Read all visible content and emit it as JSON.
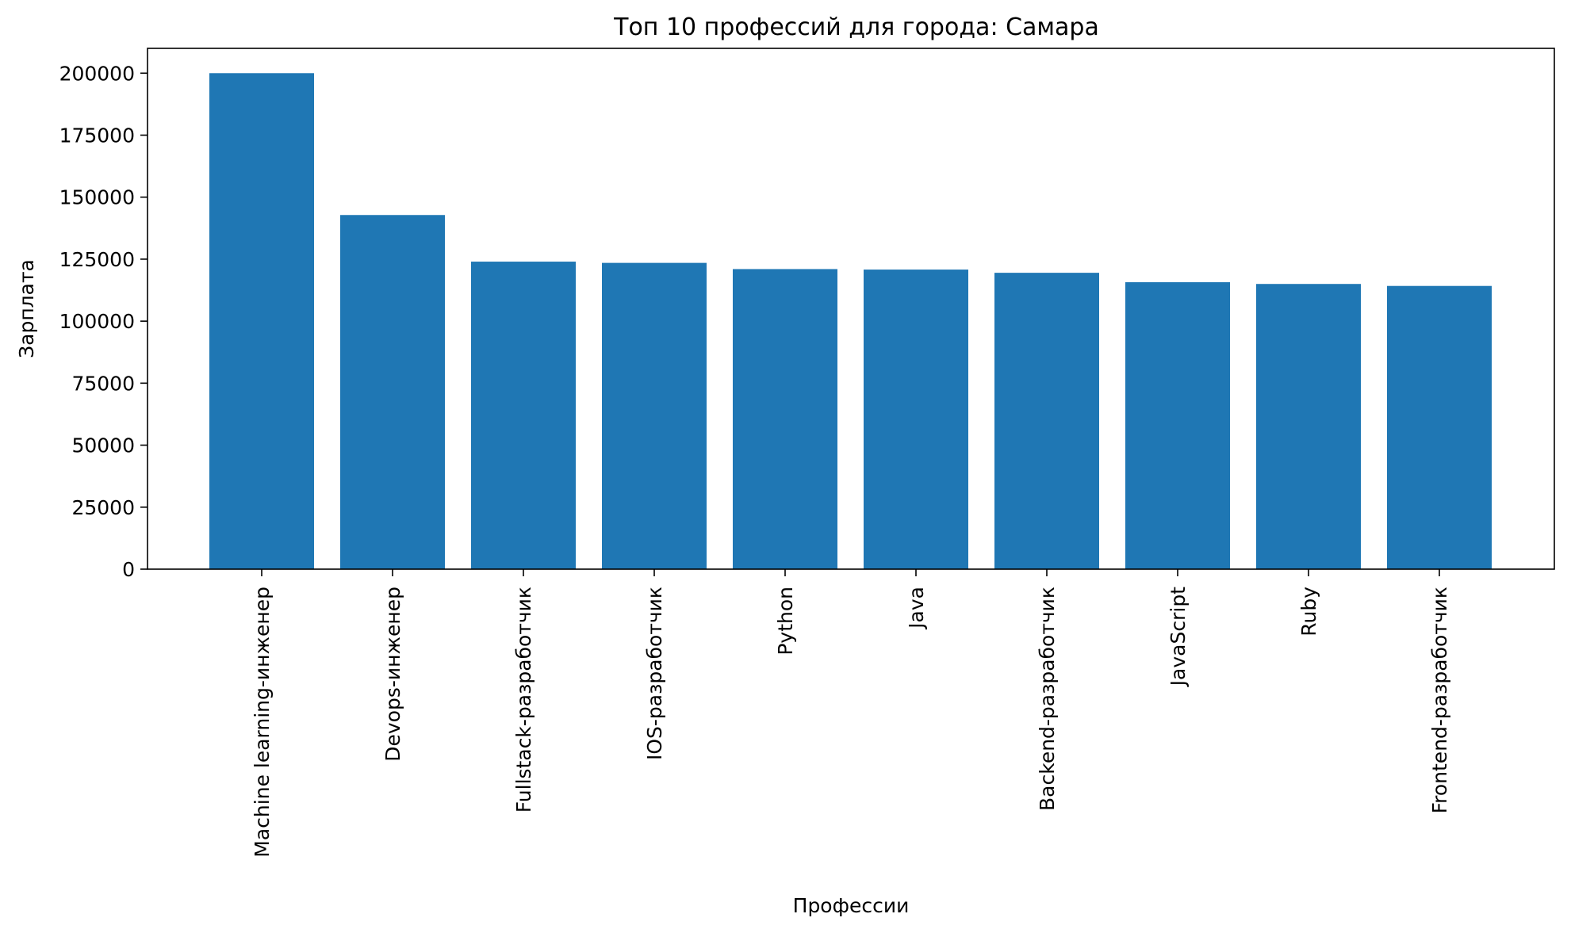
{
  "chart_data": {
    "type": "bar",
    "title": "Топ 10 профессий для города: Самара",
    "xlabel": "Профессии",
    "ylabel": "Зарплата",
    "categories": [
      "Machine learning-инженер",
      "Devops-инженер",
      "Fullstack-разработчик",
      "IOS-разработчик",
      "Python",
      "Java",
      "Backend-разработчик",
      "JavaScript",
      "Ruby",
      "Frontend-разработчик"
    ],
    "values": [
      200000,
      142800,
      124000,
      123500,
      121000,
      120800,
      119500,
      115700,
      115000,
      114200
    ],
    "ylim": [
      0,
      210000
    ],
    "yticks": [
      0,
      25000,
      50000,
      75000,
      100000,
      125000,
      150000,
      175000,
      200000
    ],
    "ytick_labels": [
      "0",
      "25000",
      "50000",
      "75000",
      "100000",
      "125000",
      "150000",
      "175000",
      "200000"
    ],
    "bar_color": "#1f77b4",
    "grid": false,
    "legend": "none"
  }
}
